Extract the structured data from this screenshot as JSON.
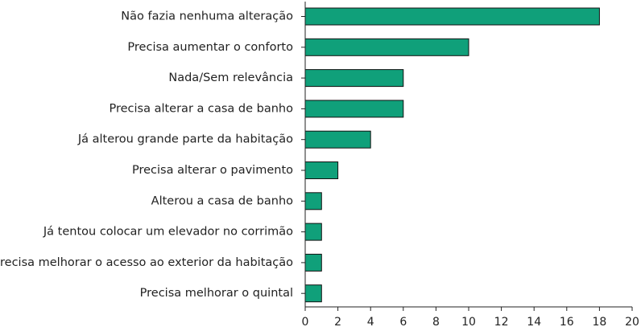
{
  "chart_data": {
    "type": "bar",
    "orientation": "horizontal",
    "categories": [
      "Não fazia nenhuma alteração",
      "Precisa aumentar o conforto",
      "Nada/Sem relevância",
      "Precisa alterar a casa de banho",
      "Já alterou grande parte da habitação",
      "Precisa alterar o pavimento",
      "Alterou a casa de banho",
      "Já tentou colocar um elevador no corrimão",
      "Precisa melhorar o acesso ao exterior da habitação",
      "Precisa melhorar o quintal"
    ],
    "values": [
      18,
      10,
      6,
      6,
      4,
      2,
      1,
      1,
      1,
      1
    ],
    "xlim": [
      0,
      20
    ],
    "xticks": [
      0,
      2,
      4,
      6,
      8,
      10,
      12,
      14,
      16,
      18,
      20
    ],
    "grid": false,
    "bar_color": "#10a07a"
  }
}
